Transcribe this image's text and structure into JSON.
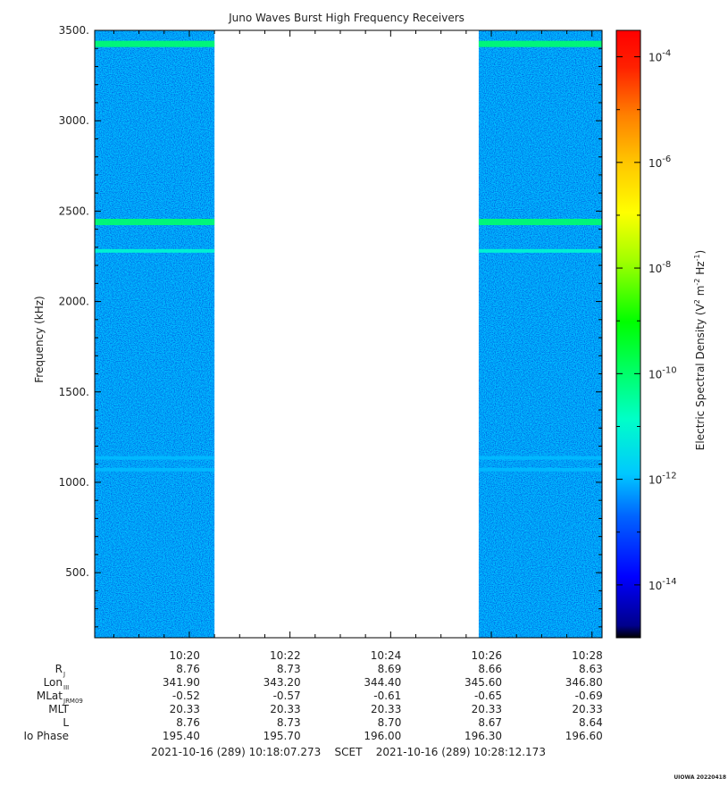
{
  "chart_data": {
    "type": "heatmap",
    "title": "Juno Waves Burst High Frequency Receivers",
    "ylabel": "Frequency (kHz)",
    "ylim": [
      140,
      3500
    ],
    "y_ticks": [
      "3500.",
      "3000.",
      "2500.",
      "2000.",
      "1500.",
      "1000.",
      "500."
    ],
    "y_tick_values": [
      3500,
      3000,
      2500,
      2000,
      1500,
      1000,
      500
    ],
    "x_ticks": [
      "10:20",
      "10:22",
      "10:24",
      "10:26",
      "10:28"
    ],
    "x_tick_minutes": [
      20,
      22,
      24,
      26,
      28
    ],
    "x_range_minutes": [
      18.12,
      28.2
    ],
    "data_segments": [
      {
        "start": "10:18:07",
        "end": "10:20:30",
        "start_min": 18.12,
        "end_min": 20.5
      },
      {
        "start": "10:25:45",
        "end": "10:28:12",
        "start_min": 25.75,
        "end_min": 28.2
      }
    ],
    "emission_bands_khz": [
      {
        "freq": 3425,
        "intensity": "1e-10"
      },
      {
        "freq": 2440,
        "intensity": "1e-10"
      },
      {
        "freq": 2280,
        "intensity": "1e-11"
      },
      {
        "freq": 1135,
        "intensity": "1e-12"
      },
      {
        "freq": 1070,
        "intensity": "1e-12"
      }
    ],
    "background_level": "1e-12",
    "colorbar": {
      "label": "Electric Spectral Density (V² m⁻² Hz⁻¹)",
      "label_main": "Electric Spectral Density (V",
      "label_sup1": "2",
      "label_mid": " m",
      "label_sup2": "-2",
      "label_hz": " Hz",
      "label_sup3": "-1",
      "label_end": ")",
      "scale": "log",
      "range_exponent": [
        -15,
        -3.5
      ],
      "tick_base": "10",
      "tick_exponents": [
        "-4",
        "-6",
        "-8",
        "-10",
        "-12",
        "-14"
      ],
      "tick_exponent_values": [
        -4,
        -6,
        -8,
        -10,
        -12,
        -14
      ],
      "colors": [
        "#000000",
        "#00008b",
        "#0000ff",
        "#0064ff",
        "#00c8ff",
        "#00ffc8",
        "#00ff00",
        "#a0ff00",
        "#ffff00",
        "#ffc800",
        "#ff8000",
        "#ff2000",
        "#ff0000"
      ]
    }
  },
  "ephemeris": {
    "row_labels": [
      {
        "main": "R",
        "sub": "J"
      },
      {
        "main": "Lon",
        "sub": "III"
      },
      {
        "main": "MLat",
        "sub": "JRM09"
      },
      {
        "main": "MLT",
        "sub": ""
      },
      {
        "main": "L",
        "sub": ""
      },
      {
        "main": "Io Phase",
        "sub": ""
      }
    ],
    "rows": [
      [
        "8.76",
        "8.73",
        "8.69",
        "8.66",
        "8.63"
      ],
      [
        "341.90",
        "343.20",
        "344.40",
        "345.60",
        "346.80"
      ],
      [
        "-0.52",
        "-0.57",
        "-0.61",
        "-0.65",
        "-0.69"
      ],
      [
        "20.33",
        "20.33",
        "20.33",
        "20.33",
        "20.33"
      ],
      [
        "8.76",
        "8.73",
        "8.70",
        "8.67",
        "8.64"
      ],
      [
        "195.40",
        "195.70",
        "196.00",
        "196.30",
        "196.60"
      ]
    ]
  },
  "footer": {
    "time_range": "2021-10-16 (289) 10:18:07.273    SCET    2021-10-16 (289) 10:28:12.173",
    "credit": "UIOWA 20220418"
  }
}
